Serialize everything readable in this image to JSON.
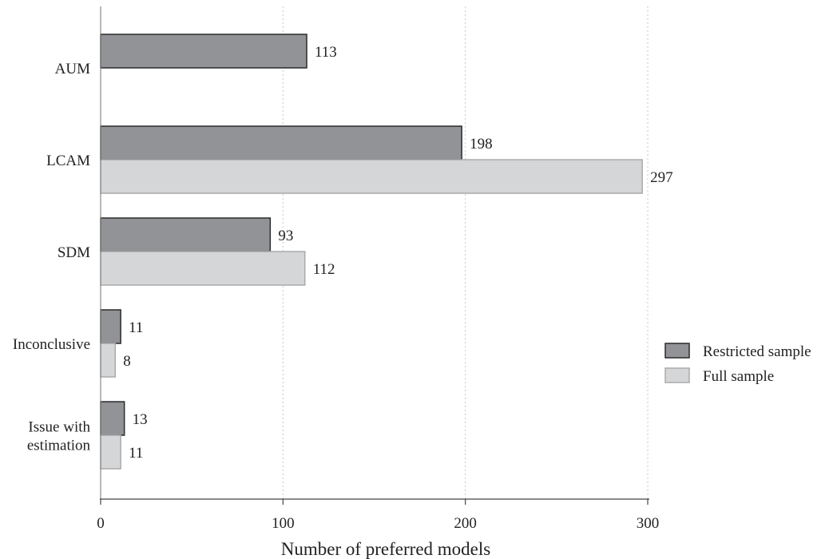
{
  "chart_data": {
    "type": "bar",
    "orientation": "horizontal",
    "categories": [
      "AUM",
      "LCAM",
      "SDM",
      "Inconclusive",
      "Issue with estimation"
    ],
    "category_display_lines": [
      [
        "AUM"
      ],
      [
        "LCAM"
      ],
      [
        "SDM"
      ],
      [
        "Inconclusive"
      ],
      [
        "Issue with",
        "estimation"
      ]
    ],
    "series": [
      {
        "name": "Restricted sample",
        "values": [
          113,
          198,
          93,
          11,
          13
        ],
        "color": "#929397",
        "stroke": "#2b2b2b"
      },
      {
        "name": "Full sample",
        "values": [
          null,
          297,
          112,
          8,
          11
        ],
        "color": "#d5d6d8",
        "stroke": "#a9aaac"
      }
    ],
    "xlabel": "Number of preferred models",
    "ylabel": "",
    "xlim": [
      0,
      300
    ],
    "xticks": [
      0,
      100,
      200,
      300
    ],
    "xtick_labels": [
      "0",
      "100",
      "200",
      "300"
    ],
    "grid": "vertical dotted",
    "legend": "right",
    "data_labels": true
  }
}
